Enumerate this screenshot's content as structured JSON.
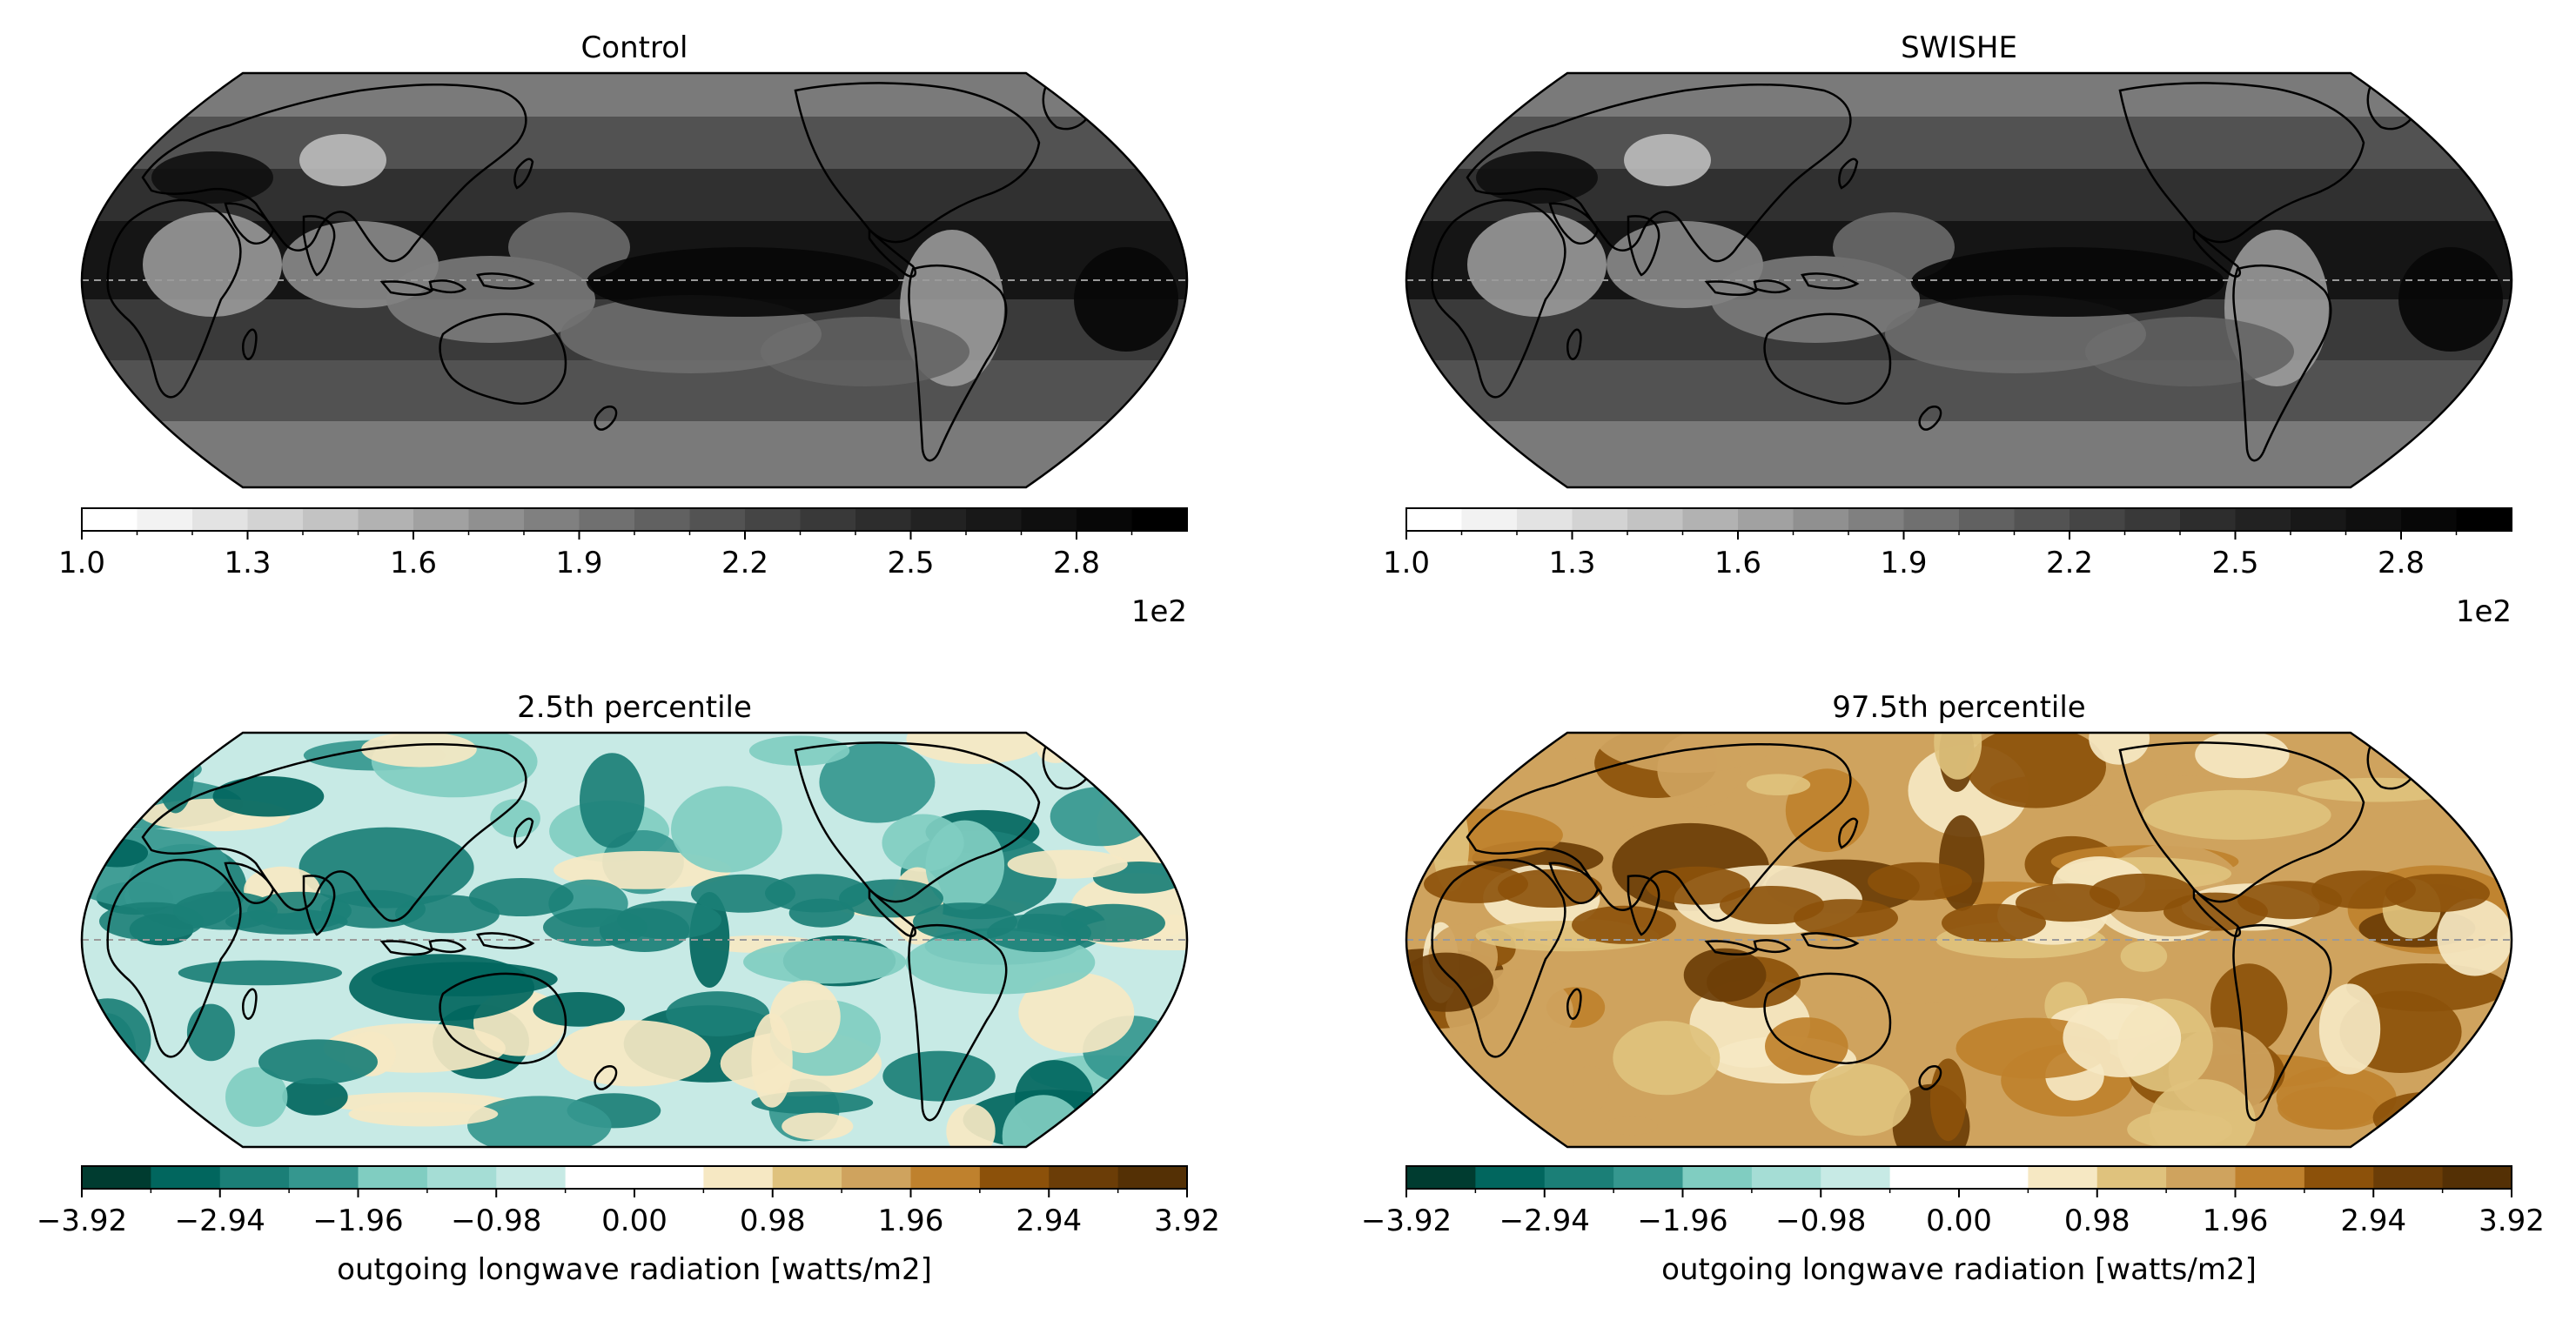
{
  "chart_data": [
    {
      "type": "heatmap",
      "title": "Control",
      "projection": "Robinson (map outline, coastlines, dashed equator)",
      "colormap": "Greys",
      "colorbar": {
        "ticks": [
          "1.0",
          "1.3",
          "1.6",
          "1.9",
          "2.2",
          "2.5",
          "2.8"
        ],
        "range": [
          1.0,
          3.0
        ],
        "levels": 20,
        "offset_label": "1e2",
        "label": ""
      }
    },
    {
      "type": "heatmap",
      "title": "SWISHE",
      "projection": "Robinson (map outline, coastlines, dashed equator)",
      "colormap": "Greys",
      "colorbar": {
        "ticks": [
          "1.0",
          "1.3",
          "1.6",
          "1.9",
          "2.2",
          "2.5",
          "2.8"
        ],
        "range": [
          1.0,
          3.0
        ],
        "levels": 20,
        "offset_label": "1e2",
        "label": ""
      }
    },
    {
      "type": "heatmap",
      "title": "2.5th percentile",
      "projection": "Robinson (map outline, coastlines, dashed equator)",
      "colormap": "BrBG_r",
      "colorbar": {
        "ticks": [
          "−3.92",
          "−2.94",
          "−1.96",
          "−0.98",
          "0.00",
          "0.98",
          "1.96",
          "2.94",
          "3.92"
        ],
        "range": [
          -3.92,
          3.92
        ],
        "levels": 16,
        "label": "outgoing longwave radiation [watts/m2]"
      }
    },
    {
      "type": "heatmap",
      "title": "97.5th percentile",
      "projection": "Robinson (map outline, coastlines, dashed equator)",
      "colormap": "BrBG_r",
      "colorbar": {
        "ticks": [
          "−3.92",
          "−2.94",
          "−1.96",
          "−0.98",
          "0.00",
          "0.98",
          "1.96",
          "2.94",
          "3.92"
        ],
        "range": [
          -3.92,
          3.92
        ],
        "levels": 16,
        "label": "outgoing longwave radiation [watts/m2]"
      }
    }
  ],
  "colors": {
    "greys": [
      "#ffffff",
      "#f2f2f2",
      "#e3e3e3",
      "#d3d3d3",
      "#c3c3c3",
      "#b2b2b2",
      "#a1a1a1",
      "#909090",
      "#808080",
      "#707070",
      "#616161",
      "#535353",
      "#454545",
      "#393939",
      "#2d2d2d",
      "#222222",
      "#181818",
      "#0f0f0f",
      "#070707",
      "#000000"
    ],
    "diverging": [
      "#003c30",
      "#01665e",
      "#1b7f77",
      "#35978f",
      "#80cdc1",
      "#a5ddd5",
      "#c7eae5",
      "#ffffff",
      "#ffffff",
      "#f6e8c3",
      "#dfc27d",
      "#cfa35e",
      "#bf812d",
      "#8c510a",
      "#6b3d07",
      "#543005"
    ],
    "map_bg_greys": "#4a4a4a",
    "map_bg_low": "#c7eae5",
    "map_bg_high": "#cfa35e",
    "coastline": "#000000",
    "equator": "#9a9a9a"
  }
}
